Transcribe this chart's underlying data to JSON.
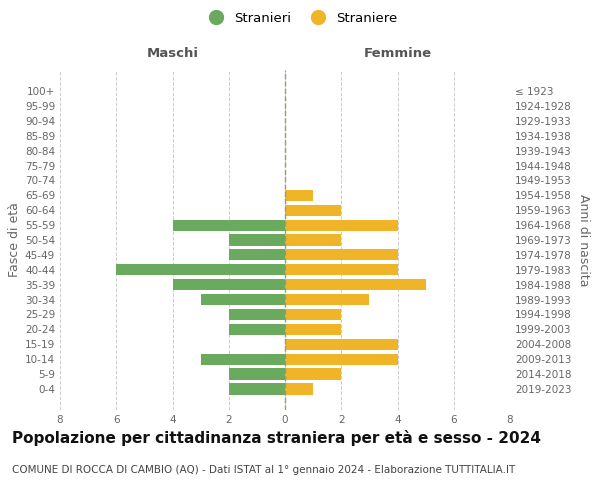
{
  "age_groups": [
    "100+",
    "95-99",
    "90-94",
    "85-89",
    "80-84",
    "75-79",
    "70-74",
    "65-69",
    "60-64",
    "55-59",
    "50-54",
    "45-49",
    "40-44",
    "35-39",
    "30-34",
    "25-29",
    "20-24",
    "15-19",
    "10-14",
    "5-9",
    "0-4"
  ],
  "birth_years": [
    "≤ 1923",
    "1924-1928",
    "1929-1933",
    "1934-1938",
    "1939-1943",
    "1944-1948",
    "1949-1953",
    "1954-1958",
    "1959-1963",
    "1964-1968",
    "1969-1973",
    "1974-1978",
    "1979-1983",
    "1984-1988",
    "1989-1993",
    "1994-1998",
    "1999-2003",
    "2004-2008",
    "2009-2013",
    "2014-2018",
    "2019-2023"
  ],
  "males": [
    0,
    0,
    0,
    0,
    0,
    0,
    0,
    0,
    0,
    4,
    2,
    2,
    6,
    4,
    3,
    2,
    2,
    0,
    3,
    2,
    2
  ],
  "females": [
    0,
    0,
    0,
    0,
    0,
    0,
    0,
    1,
    2,
    4,
    2,
    4,
    4,
    5,
    3,
    2,
    2,
    4,
    4,
    2,
    1
  ],
  "male_color": "#6aaa5e",
  "female_color": "#f0b429",
  "male_label": "Stranieri",
  "female_label": "Straniere",
  "title": "Popolazione per cittadinanza straniera per età e sesso - 2024",
  "subtitle": "COMUNE DI ROCCA DI CAMBIO (AQ) - Dati ISTAT al 1° gennaio 2024 - Elaborazione TUTTITALIA.IT",
  "xlabel_left": "Maschi",
  "xlabel_right": "Femmine",
  "ylabel_left": "Fasce di età",
  "ylabel_right": "Anni di nascita",
  "xlim": 8,
  "background_color": "#ffffff",
  "grid_color": "#cccccc",
  "tick_color": "#666666",
  "center_line_color": "#999977",
  "title_fontsize": 11,
  "subtitle_fontsize": 7.5,
  "header_fontsize": 9.5,
  "axis_label_fontsize": 9,
  "tick_fontsize": 7.5,
  "legend_fontsize": 9.5
}
